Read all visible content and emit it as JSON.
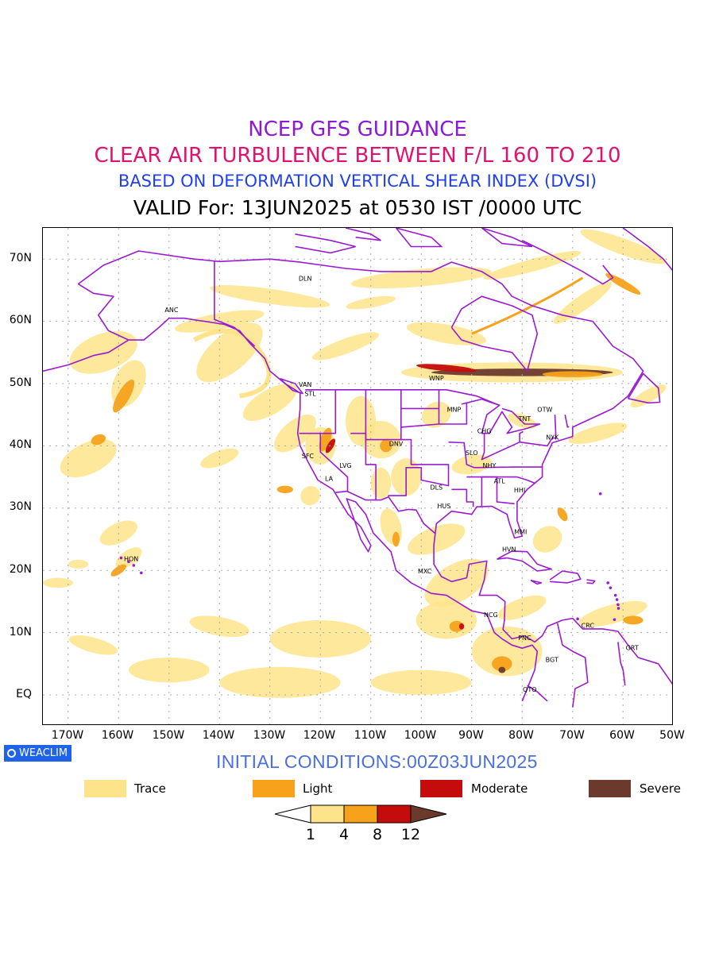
{
  "titles": {
    "line1": "NCEP GFS GUIDANCE",
    "line2": "CLEAR AIR TURBULENCE BETWEEN F/L 160 TO 210",
    "line3": "BASED ON DEFORMATION VERTICAL SHEAR INDEX (DVSI)",
    "line4": "VALID For: 13JUN2025 at 0530 IST /0000 UTC"
  },
  "colors": {
    "line1": "#8a1ad8",
    "line2": "#e0126e",
    "line3": "#1f3ff0",
    "coastline": "#9a1ad0",
    "trace": "#fde48a",
    "light": "#f7a21a",
    "moderate": "#c40c0c",
    "severe": "#6b3a2d"
  },
  "axes": {
    "lat_labels": [
      "70N",
      "60N",
      "50N",
      "40N",
      "30N",
      "20N",
      "10N",
      "EQ"
    ],
    "lon_labels": [
      "170W",
      "160W",
      "150W",
      "140W",
      "130W",
      "120W",
      "110W",
      "100W",
      "90W",
      "80W",
      "70W",
      "60W",
      "50W"
    ]
  },
  "stations": [
    "DLN",
    "ANC",
    "VAN",
    "STL",
    "WNP",
    "MNP",
    "OTW",
    "TNT",
    "CHG",
    "NYK",
    "DNV",
    "SFC",
    "LVG",
    "SLO",
    "NHY",
    "LA",
    "ATL",
    "DLS",
    "HHI",
    "HUS",
    "MMI",
    "HON",
    "HVN",
    "MXC",
    "NCG",
    "CRC",
    "PNC",
    "GRT",
    "BGT",
    "QTO"
  ],
  "credit": "WEACLIM",
  "initial_conditions": "INITIAL CONDITIONS:00Z03JUN2025",
  "legend": [
    {
      "label": "Trace",
      "color": "#fde48a"
    },
    {
      "label": "Light",
      "color": "#f7a21a"
    },
    {
      "label": "Moderate",
      "color": "#c40c0c"
    },
    {
      "label": "Severe",
      "color": "#6b3a2d"
    }
  ],
  "colorbar": {
    "levels": [
      "1",
      "4",
      "8",
      "12"
    ]
  }
}
